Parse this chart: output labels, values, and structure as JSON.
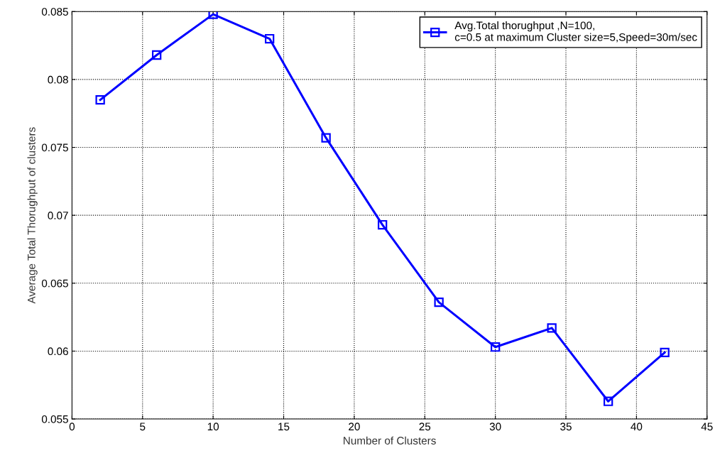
{
  "chart_data": {
    "type": "line",
    "xlabel": "Number of Clusters",
    "ylabel": "Average Total Thorughput of clusters",
    "x": [
      2,
      6,
      10,
      14,
      18,
      22,
      26,
      30,
      34,
      38,
      42
    ],
    "series": [
      {
        "name": "Avg.Total thorughput ,N=100,\nc=0.5 at maximum Cluster size=5,Speed=30m/sec",
        "color": "#0000ff",
        "values": [
          0.0785,
          0.0818,
          0.0848,
          0.083,
          0.0757,
          0.0693,
          0.0636,
          0.0603,
          0.0617,
          0.0563,
          0.0599
        ]
      }
    ],
    "xlim": [
      0,
      45
    ],
    "xticks": [
      0,
      5,
      10,
      15,
      20,
      25,
      30,
      35,
      40,
      45
    ],
    "ylim": [
      0.055,
      0.085
    ],
    "yticks": [
      0.055,
      0.06,
      0.065,
      0.07,
      0.075,
      0.08,
      0.085
    ],
    "grid": true,
    "legend": "top right",
    "marker": "square",
    "line_style": "solid"
  }
}
